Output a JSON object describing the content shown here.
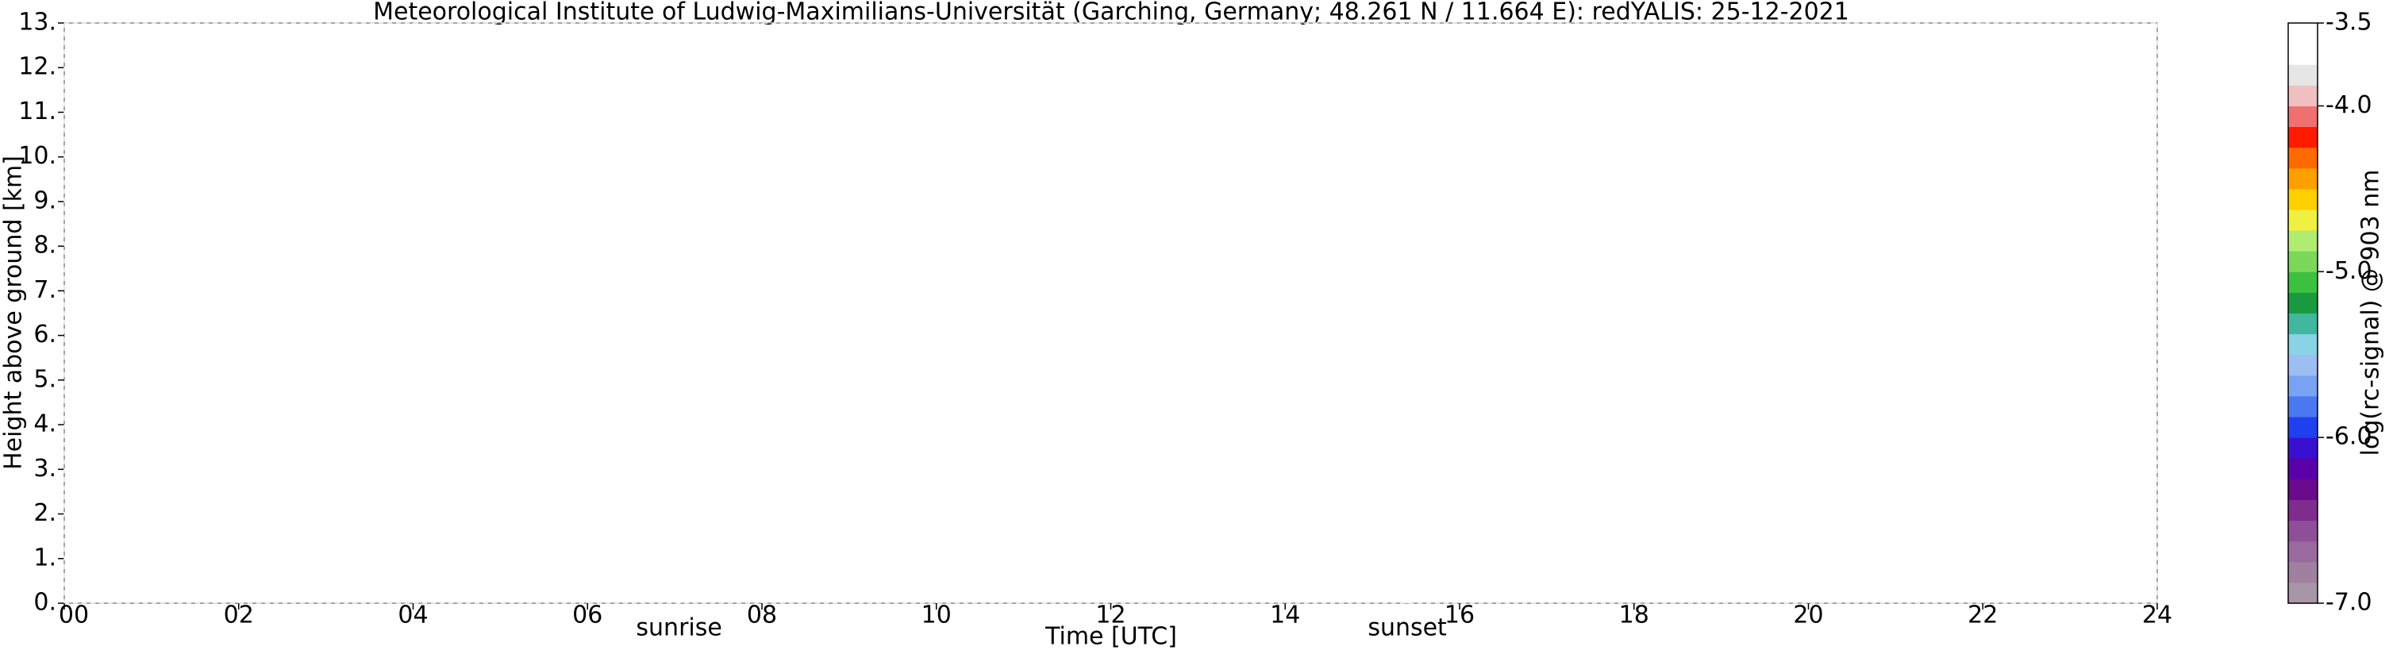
{
  "chart_data": {
    "type": "lidar-quicklook",
    "title": "Meteorological Institute of Ludwig-Maximilians-Universität (Garching, Germany; 48.261 N / 11.664 E):    redYALIS: 25-12-2021",
    "x_label": "Time [UTC]",
    "y_label": "Height above ground [km]",
    "xlim": [
      0,
      24
    ],
    "xticks": [
      {
        "value": 0,
        "label": "00"
      },
      {
        "value": 2,
        "label": "02"
      },
      {
        "value": 4,
        "label": "04"
      },
      {
        "value": 6,
        "label": "06"
      },
      {
        "value": 8,
        "label": "08"
      },
      {
        "value": 10,
        "label": "10"
      },
      {
        "value": 12,
        "label": "12"
      },
      {
        "value": 14,
        "label": "14"
      },
      {
        "value": 16,
        "label": "16"
      },
      {
        "value": 18,
        "label": "18"
      },
      {
        "value": 20,
        "label": "20"
      },
      {
        "value": 22,
        "label": "22"
      },
      {
        "value": 24,
        "label": "24"
      }
    ],
    "ylim": [
      0,
      13
    ],
    "yticks": [
      {
        "value": 0,
        "label": "0."
      },
      {
        "value": 1,
        "label": "1."
      },
      {
        "value": 2,
        "label": "2."
      },
      {
        "value": 3,
        "label": "3."
      },
      {
        "value": 4,
        "label": "4."
      },
      {
        "value": 5,
        "label": "5."
      },
      {
        "value": 6,
        "label": "6."
      },
      {
        "value": 7,
        "label": "7."
      },
      {
        "value": 8,
        "label": "8."
      },
      {
        "value": 9,
        "label": "9."
      },
      {
        "value": 10,
        "label": "10."
      },
      {
        "value": 11,
        "label": "11."
      },
      {
        "value": 12,
        "label": "12."
      },
      {
        "value": 13,
        "label": "13."
      }
    ],
    "grid": true,
    "annotations": [
      {
        "label": "sunrise",
        "x": 7.05
      },
      {
        "label": "sunset",
        "x": 15.4
      }
    ],
    "colorbar": {
      "label": "log(rc-signal) @ 903 nm",
      "lim": [
        -7.0,
        -3.5
      ],
      "ticks": [
        {
          "value": -3.5,
          "label": "-3.5"
        },
        {
          "value": -4.0,
          "label": "-4.0"
        },
        {
          "value": -5.0,
          "label": "-5.0"
        },
        {
          "value": -6.0,
          "label": "-6.0"
        },
        {
          "value": -7.0,
          "label": "-7.0"
        }
      ],
      "colors": [
        "#a896a8",
        "#a07fa0",
        "#9a6a9e",
        "#8e4e98",
        "#7e2c8e",
        "#6a0a8c",
        "#5a00a8",
        "#3a10d0",
        "#2040f0",
        "#4a78f0",
        "#7aa2f4",
        "#9cbef2",
        "#8ad2e6",
        "#40b8a0",
        "#1a9a40",
        "#3cc040",
        "#7ad85a",
        "#b0ec70",
        "#f0f040",
        "#ffd000",
        "#ffa000",
        "#ff6a00",
        "#ff1a00",
        "#f07070",
        "#f0c0c0",
        "#e6e6e6",
        "#ffffff",
        "#ffffff"
      ]
    }
  }
}
